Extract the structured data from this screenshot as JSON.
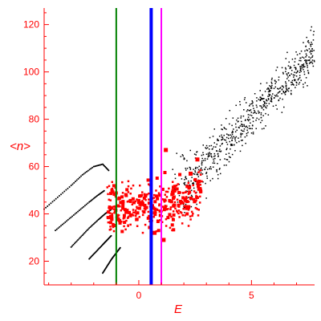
{
  "chart_data": {
    "type": "scatter",
    "title": "",
    "xlabel": "E",
    "ylabel": "<n>",
    "xlim": [
      -4.2,
      7.8
    ],
    "ylim": [
      10,
      127
    ],
    "xticks": [
      0,
      5
    ],
    "yticks": [
      20,
      40,
      60,
      80,
      100,
      120
    ],
    "grid": false,
    "legend": "none",
    "colors": {
      "axis": "#ff0000",
      "black_points": "#000000",
      "red_points": "#ff0000",
      "green_line": "#008000",
      "blue_line": "#0000ff",
      "magenta_line": "#ff00ff"
    },
    "vertical_lines": [
      {
        "x": -1.0,
        "color": "#008000"
      },
      {
        "x": 0.55,
        "color": "#0000ff"
      },
      {
        "x": 1.0,
        "color": "#ff00ff"
      }
    ],
    "series": [
      {
        "color": "#000000",
        "marker": "dot",
        "description_points": "linear band",
        "x_range": [
          2.0,
          7.8
        ],
        "trend": {
          "slope": 10.2,
          "intercept": 30,
          "spread": 8
        },
        "count": 650
      },
      {
        "color": "#000000",
        "marker": "dot",
        "curves": [
          {
            "x": [
              -4.2,
              -3.6,
              -3.0,
              -2.5,
              -2.0,
              -1.6,
              -1.3
            ],
            "y": [
              42,
              47,
              52,
              56.5,
              60,
              61,
              58
            ]
          },
          {
            "x": [
              -3.7,
              -3.2,
              -2.7,
              -2.2,
              -1.8,
              -1.5
            ],
            "y": [
              33,
              37,
              41,
              45,
              48,
              50
            ]
          },
          {
            "x": [
              -3.0,
              -2.6,
              -2.2,
              -1.8,
              -1.5,
              -1.2
            ],
            "y": [
              26,
              30,
              34,
              37.5,
              40,
              42
            ]
          },
          {
            "x": [
              -2.2,
              -1.9,
              -1.6,
              -1.4,
              -1.2
            ],
            "y": [
              21,
              24,
              27,
              29,
              31
            ]
          },
          {
            "x": [
              -1.6,
              -1.4,
              -1.2,
              -1.0,
              -0.8
            ],
            "y": [
              15,
              18,
              21,
              23.5,
              26
            ]
          }
        ]
      },
      {
        "color": "#ff0000",
        "marker": "square",
        "x_range": [
          -1.4,
          2.8
        ],
        "y_center": 43,
        "count": 380,
        "outliers": [
          {
            "x": 1.2,
            "y": 67
          },
          {
            "x": 2.3,
            "y": 57
          },
          {
            "x": 2.6,
            "y": 63
          },
          {
            "x": 1.1,
            "y": 29
          },
          {
            "x": 0.7,
            "y": 32
          }
        ]
      }
    ]
  }
}
